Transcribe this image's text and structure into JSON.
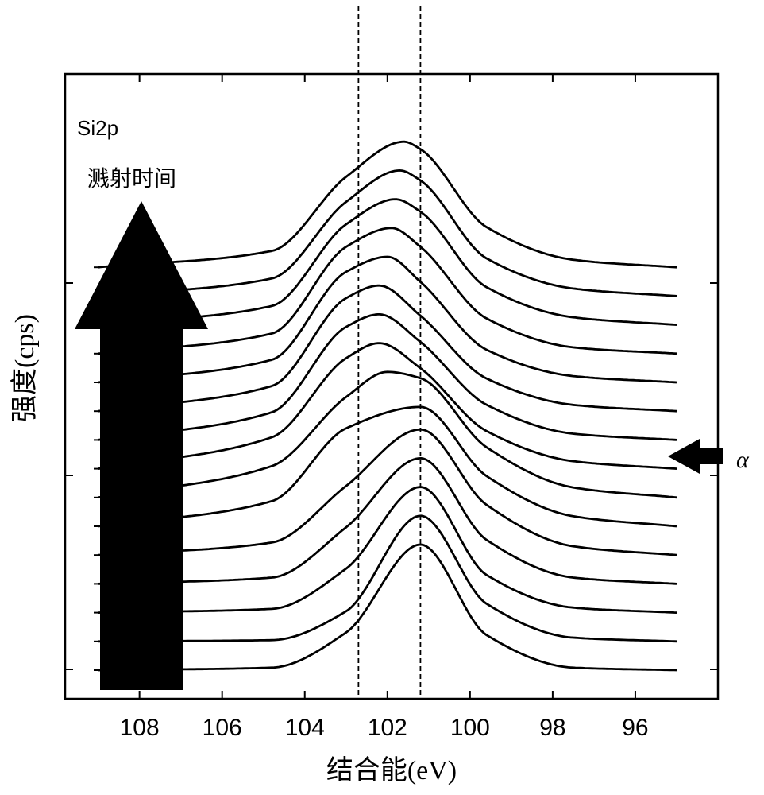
{
  "chart_data": {
    "type": "line",
    "annotation_label": "Si2p",
    "arrow_label": "溅射时间",
    "marker_label": "α",
    "xlabel": "结合能(eV)",
    "ylabel": "强度(cps)",
    "xlim": [
      109.8,
      94.0
    ],
    "x_reversed": true,
    "x_ticks": [
      108,
      106,
      104,
      102,
      100,
      98,
      96
    ],
    "reference_lines_x": [
      102.7,
      101.2
    ],
    "grid": false,
    "legend": "none",
    "stacked_offsets": true,
    "marked_series_index": 7,
    "series": [
      {
        "x": [
          109.0,
          104.8,
          103.0,
          101.2,
          99.6,
          97.5,
          95.0
        ],
        "y": [
          0.0,
          0.02,
          0.3,
          1.0,
          0.28,
          0.02,
          0.0
        ]
      },
      {
        "x": [
          109.0,
          104.8,
          103.0,
          101.2,
          99.6,
          97.5,
          95.0
        ],
        "y": [
          0.0,
          0.01,
          0.24,
          1.0,
          0.3,
          0.03,
          0.0
        ]
      },
      {
        "x": [
          109.0,
          104.8,
          103.0,
          101.2,
          99.6,
          97.5,
          95.0
        ],
        "y": [
          0.0,
          0.03,
          0.35,
          1.0,
          0.3,
          0.04,
          0.0
        ]
      },
      {
        "x": [
          109.0,
          104.8,
          103.0,
          101.2,
          99.6,
          97.5,
          95.0
        ],
        "y": [
          0.0,
          0.05,
          0.45,
          1.0,
          0.35,
          0.05,
          0.0
        ]
      },
      {
        "x": [
          109.0,
          104.8,
          103.0,
          101.2,
          99.6,
          97.5,
          95.0
        ],
        "y": [
          0.0,
          0.1,
          0.55,
          1.0,
          0.4,
          0.07,
          0.0
        ]
      },
      {
        "x": [
          109.0,
          104.8,
          103.0,
          101.2,
          99.6,
          97.5,
          95.0
        ],
        "y": [
          0.0,
          0.2,
          0.78,
          0.95,
          0.4,
          0.08,
          0.0
        ]
      },
      {
        "x": [
          109.0,
          104.8,
          103.0,
          102.0,
          101.2,
          99.6,
          97.5,
          95.0
        ],
        "y": [
          0.0,
          0.25,
          0.8,
          1.0,
          0.95,
          0.4,
          0.08,
          0.0
        ]
      },
      {
        "x": [
          109.0,
          104.8,
          103.0,
          102.2,
          101.2,
          99.6,
          97.5,
          95.0
        ],
        "y": [
          0.0,
          0.25,
          0.88,
          1.0,
          0.8,
          0.3,
          0.06,
          0.0
        ]
      },
      {
        "x": [
          109.0,
          104.8,
          103.0,
          102.2,
          101.2,
          99.6,
          97.5,
          95.0
        ],
        "y": [
          0.0,
          0.22,
          0.9,
          1.0,
          0.78,
          0.28,
          0.05,
          0.0
        ]
      },
      {
        "x": [
          109.0,
          104.8,
          103.0,
          102.2,
          101.2,
          99.6,
          97.5,
          95.0
        ],
        "y": [
          0.0,
          0.2,
          0.9,
          1.0,
          0.76,
          0.26,
          0.05,
          0.0
        ]
      },
      {
        "x": [
          109.0,
          104.8,
          103.0,
          102.0,
          101.2,
          99.6,
          97.5,
          95.0
        ],
        "y": [
          0.0,
          0.18,
          0.88,
          1.0,
          0.8,
          0.26,
          0.05,
          0.0
        ]
      },
      {
        "x": [
          109.0,
          104.8,
          103.0,
          101.9,
          101.2,
          99.6,
          97.5,
          95.0
        ],
        "y": [
          0.0,
          0.16,
          0.85,
          1.0,
          0.85,
          0.28,
          0.05,
          0.0
        ]
      },
      {
        "x": [
          109.0,
          104.8,
          103.0,
          101.8,
          101.2,
          99.6,
          97.5,
          95.0
        ],
        "y": [
          0.0,
          0.15,
          0.8,
          1.0,
          0.9,
          0.3,
          0.06,
          0.0
        ]
      },
      {
        "x": [
          109.0,
          104.8,
          103.0,
          101.7,
          101.2,
          99.6,
          97.5,
          95.0
        ],
        "y": [
          0.0,
          0.14,
          0.75,
          1.0,
          0.92,
          0.3,
          0.06,
          0.0
        ]
      },
      {
        "x": [
          109.0,
          104.8,
          103.0,
          101.6,
          101.2,
          99.6,
          97.5,
          95.0
        ],
        "y": [
          0.0,
          0.13,
          0.72,
          1.0,
          0.94,
          0.32,
          0.06,
          0.0
        ]
      }
    ]
  }
}
